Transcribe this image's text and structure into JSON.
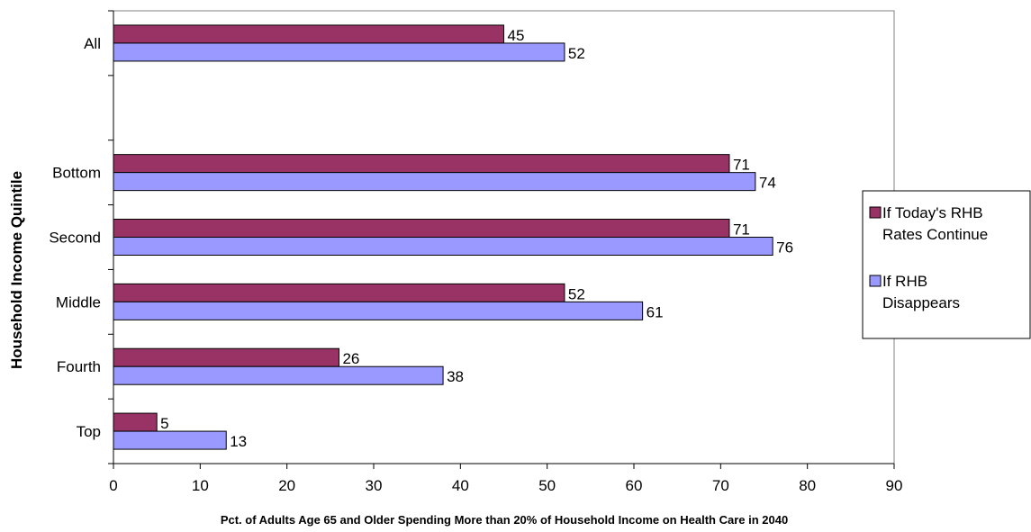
{
  "chart_data": {
    "type": "bar",
    "orientation": "horizontal",
    "categories": [
      "All",
      "",
      "Bottom",
      "Second",
      "Middle",
      "Fourth",
      "Top"
    ],
    "series": [
      {
        "name": "If Today's RHB Rates Continue",
        "values": [
          45,
          null,
          71,
          71,
          52,
          26,
          5
        ],
        "color": "#993366"
      },
      {
        "name": "If RHB Disappears",
        "values": [
          52,
          null,
          74,
          76,
          61,
          38,
          13
        ],
        "color": "#9999FF"
      }
    ],
    "legend_lines": [
      [
        "If Today's RHB",
        "Rates Continue"
      ],
      [
        "If RHB",
        "Disappears"
      ]
    ],
    "xlabel": "Pct. of Adults Age 65 and Older Spending More than 20% of Household Income on Health Care in 2040",
    "ylabel": "Household Income Quintile",
    "xlim": [
      0,
      90
    ],
    "xticks": [
      0,
      10,
      20,
      30,
      40,
      50,
      60,
      70,
      80,
      90
    ],
    "grid": false,
    "legend_position": "right"
  }
}
